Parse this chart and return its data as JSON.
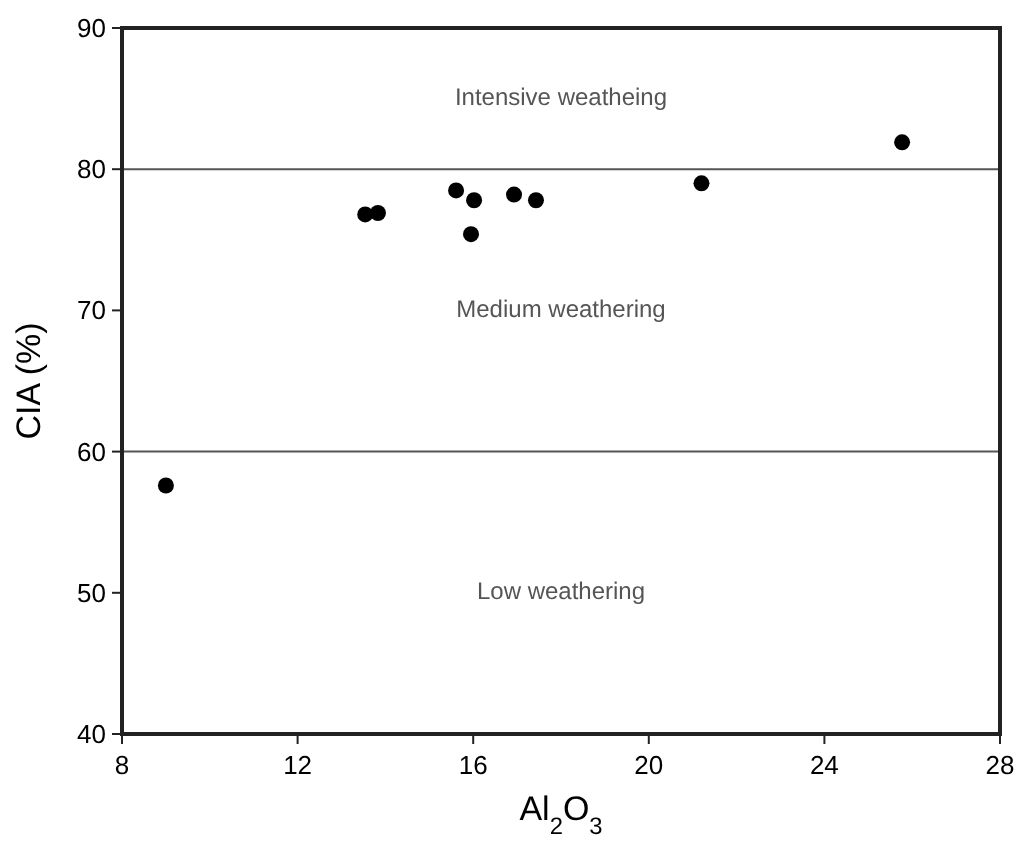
{
  "chart_data": {
    "type": "scatter",
    "xlabel": "Al$_{2}$O$_{3}$",
    "ylabel": "CIA (%)",
    "x": [
      9.0,
      13.54,
      13.83,
      15.61,
      16.02,
      15.95,
      16.93,
      17.43,
      21.2,
      25.77
    ],
    "values": [
      57.6,
      76.8,
      76.9,
      78.5,
      77.8,
      75.4,
      78.2,
      77.8,
      79.0,
      81.9
    ],
    "color": "#000000",
    "marker": "circle",
    "xlim": [
      8,
      28
    ],
    "xticks": [
      8,
      12,
      16,
      20,
      24,
      28
    ],
    "ylim": [
      40,
      90
    ],
    "yticks": [
      40,
      50,
      60,
      70,
      80,
      90
    ],
    "ref_lines": [
      {
        "axis": "y",
        "value": 80,
        "color": "#555555"
      },
      {
        "axis": "y",
        "value": 60,
        "color": "#555555"
      }
    ],
    "annotations": [
      "Intensive weatheing",
      "Medium weathering",
      "Low weathering"
    ],
    "grid": false
  }
}
